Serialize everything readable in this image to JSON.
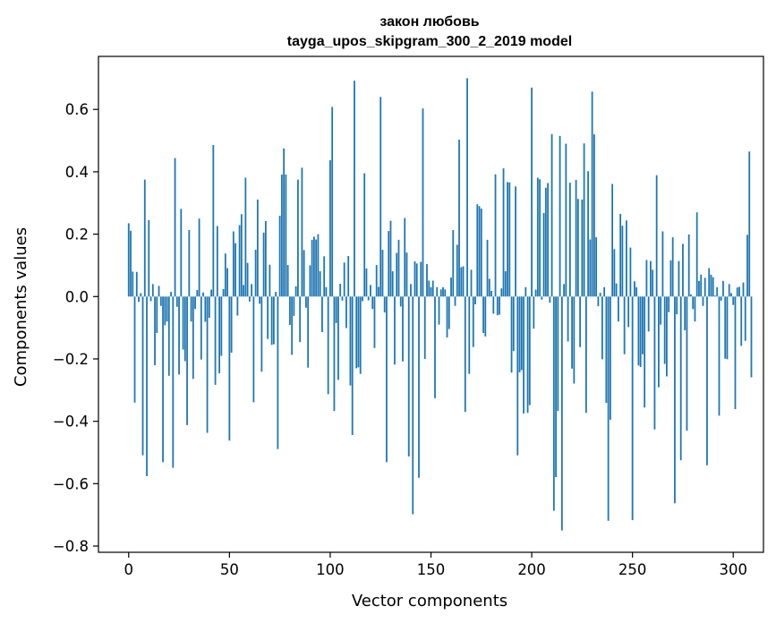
{
  "chart_data": {
    "type": "bar",
    "title_line1": "закон любовь",
    "title_line2": "tayga_upos_skipgram_300_2_2019 model",
    "xlabel": "Vector components",
    "ylabel": "Components values",
    "xlim": [
      -15,
      315
    ],
    "ylim": [
      -0.82,
      0.77
    ],
    "xticks": [
      0,
      50,
      100,
      150,
      200,
      250,
      300
    ],
    "xtick_labels": [
      "0",
      "50",
      "100",
      "150",
      "200",
      "250",
      "300"
    ],
    "yticks": [
      -0.8,
      -0.6,
      -0.4,
      -0.2,
      0.0,
      0.2,
      0.4,
      0.6
    ],
    "ytick_labels": [
      "−0.8",
      "−0.6",
      "−0.4",
      "−0.2",
      "0.0",
      "0.2",
      "0.4",
      "0.6"
    ],
    "bar_color": "#1f77b4",
    "values": [
      0.235,
      0.211,
      0.08,
      -0.34,
      0.079,
      -0.017,
      0.011,
      -0.509,
      0.375,
      -0.576,
      0.245,
      -0.015,
      0.04,
      -0.22,
      -0.117,
      0.034,
      -0.03,
      -0.531,
      -0.092,
      -0.08,
      -0.254,
      0.015,
      -0.549,
      0.444,
      -0.033,
      -0.25,
      0.281,
      -0.17,
      -0.207,
      -0.412,
      0.213,
      -0.08,
      -0.264,
      -0.04,
      0.021,
      0.25,
      -0.202,
      0.013,
      -0.081,
      -0.437,
      -0.068,
      0.022,
      0.486,
      -0.283,
      0.226,
      -0.246,
      -0.19,
      0.024,
      0.138,
      0.091,
      -0.462,
      -0.18,
      0.209,
      0.171,
      -0.061,
      0.229,
      0.264,
      0.037,
      0.381,
      0.108,
      -0.016,
      0.04,
      -0.339,
      0.15,
      0.311,
      -0.023,
      -0.241,
      0.205,
      0.242,
      -0.136,
      0.102,
      -0.155,
      -0.153,
      0.015,
      -0.489,
      0.259,
      0.391,
      0.475,
      0.391,
      0.101,
      -0.091,
      -0.187,
      -0.062,
      0.033,
      0.375,
      -0.146,
      0.413,
      0.149,
      -0.036,
      -0.228,
      0.1,
      0.182,
      0.192,
      0.183,
      0.2,
      0.081,
      -0.114,
      0.129,
      0.03,
      -0.313,
      0.437,
      0.608,
      -0.367,
      -0.085,
      -0.267,
      0.041,
      -0.013,
      0.109,
      -0.101,
      0.13,
      -0.285,
      -0.444,
      0.692,
      -0.23,
      -0.227,
      -0.248,
      -0.015,
      0.395,
      0.09,
      -0.012,
      0.037,
      -0.04,
      -0.165,
      0.101,
      0.031,
      0.64,
      0.15,
      -0.051,
      -0.531,
      0.21,
      0.243,
      0.081,
      -0.218,
      0.14,
      0.182,
      -0.032,
      -0.208,
      0.252,
      0.141,
      -0.513,
      0.04,
      -0.698,
      0.113,
      0.106,
      -0.581,
      0.111,
      0.603,
      -0.2,
      0.104,
      0.051,
      0.03,
      0.051,
      -0.326,
      0.03,
      -0.09,
      0.023,
      0.03,
      0.023,
      -0.131,
      -0.104,
      0.061,
      0.213,
      -0.03,
      0.166,
      0.503,
      0.094,
      0.097,
      -0.37,
      0.7,
      -0.248,
      0.086,
      -0.162,
      -0.025,
      0.296,
      0.29,
      0.282,
      -0.117,
      -0.128,
      0.182,
      0.057,
      0.018,
      -0.055,
      0.392,
      -0.06,
      -0.058,
      0.026,
      0.411,
      0.081,
      0.367,
      0.366,
      -0.244,
      -0.175,
      0.353,
      -0.509,
      -0.243,
      -0.236,
      -0.375,
      0.03,
      -0.373,
      -0.348,
      0.67,
      -0.103,
      0.022,
      0.381,
      0.376,
      -0.01,
      0.268,
      0.349,
      0.364,
      -0.02,
      0.521,
      -0.687,
      -0.579,
      -0.367,
      0.515,
      -0.75,
      0.04,
      0.49,
      -0.144,
      0.365,
      -0.231,
      -0.279,
      0.374,
      0.313,
      -0.162,
      0.311,
      0.491,
      -0.373,
      0.402,
      0.183,
      0.657,
      0.52,
      0.19,
      -0.031,
      0.012,
      -0.201,
      0.03,
      -0.341,
      -0.719,
      -0.395,
      0.361,
      0.152,
      0.042,
      -0.08,
      0.265,
      0.227,
      -0.185,
      0.244,
      -0.098,
      0.157,
      -0.717,
      0.049,
      0.03,
      -0.221,
      -0.226,
      -0.185,
      -0.356,
      0.117,
      -0.112,
      0.114,
      0.086,
      -0.426,
      0.389,
      -0.291,
      -0.09,
      0.209,
      -0.216,
      -0.256,
      -0.05,
      0.116,
      0.19,
      -0.663,
      -0.057,
      0.114,
      -0.525,
      0.169,
      -0.108,
      -0.43,
      0.199,
      0.007,
      -0.04,
      -0.08,
      0.27,
      0.05,
      0.07,
      -0.03,
      0.06,
      -0.541,
      0.091,
      0.07,
      0.062,
      0.003,
      0.03,
      -0.382,
      -0.013,
      0.05,
      -0.199,
      -0.201,
      0.04,
      0.011,
      -0.027,
      -0.361,
      0.029,
      0.031,
      -0.158,
      0.045,
      -0.142,
      0.198,
      0.465,
      -0.259
    ]
  }
}
